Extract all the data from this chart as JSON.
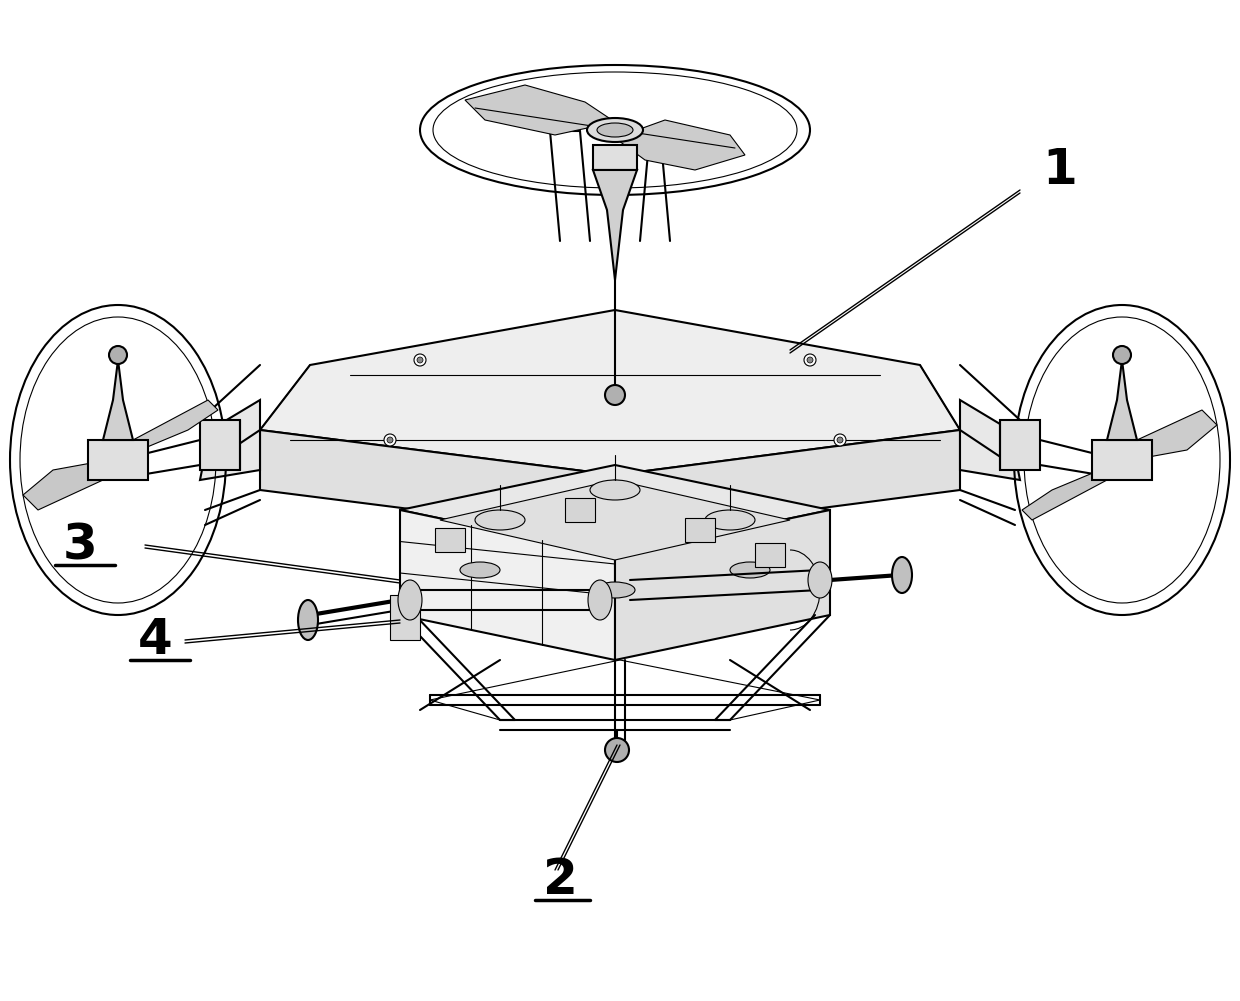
{
  "background_color": "#ffffff",
  "line_color": "#000000",
  "light_line_color": "#aaaaaa",
  "label_1": "1",
  "label_2": "2",
  "label_3": "3",
  "label_4": "4",
  "label_fontsize": 36,
  "label_fontweight": "bold"
}
